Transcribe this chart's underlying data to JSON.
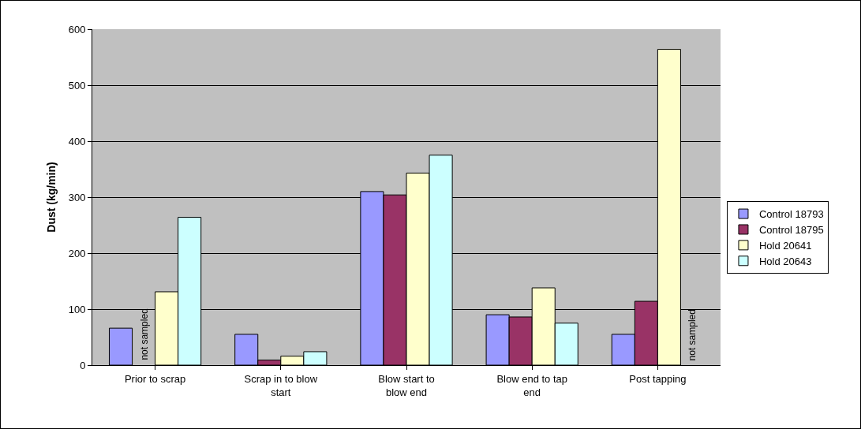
{
  "chart_data": {
    "type": "bar",
    "ylabel": "Dust (kg/min)",
    "categories": [
      "Prior to scrap",
      "Scrap in to blow start",
      "Blow start to blow end",
      "Blow end to tap end",
      "Post tapping"
    ],
    "series": [
      {
        "name": "Control 18793",
        "color": "#9999ff",
        "values": [
          66,
          55,
          310,
          90,
          55
        ]
      },
      {
        "name": "Control 18795",
        "color": "#993366",
        "values": [
          null,
          9,
          304,
          86,
          114
        ]
      },
      {
        "name": "Hold 20641",
        "color": "#ffffcc",
        "values": [
          131,
          16,
          343,
          138,
          564
        ]
      },
      {
        "name": "Hold 20643",
        "color": "#ccffff",
        "values": [
          264,
          24,
          375,
          75,
          null
        ]
      }
    ],
    "annotations": [
      "not sampled",
      "not sampled"
    ],
    "ylim": [
      0,
      600
    ],
    "yticks": [
      0,
      100,
      200,
      300,
      400,
      500,
      600
    ],
    "grid": "y",
    "legend": "right"
  }
}
